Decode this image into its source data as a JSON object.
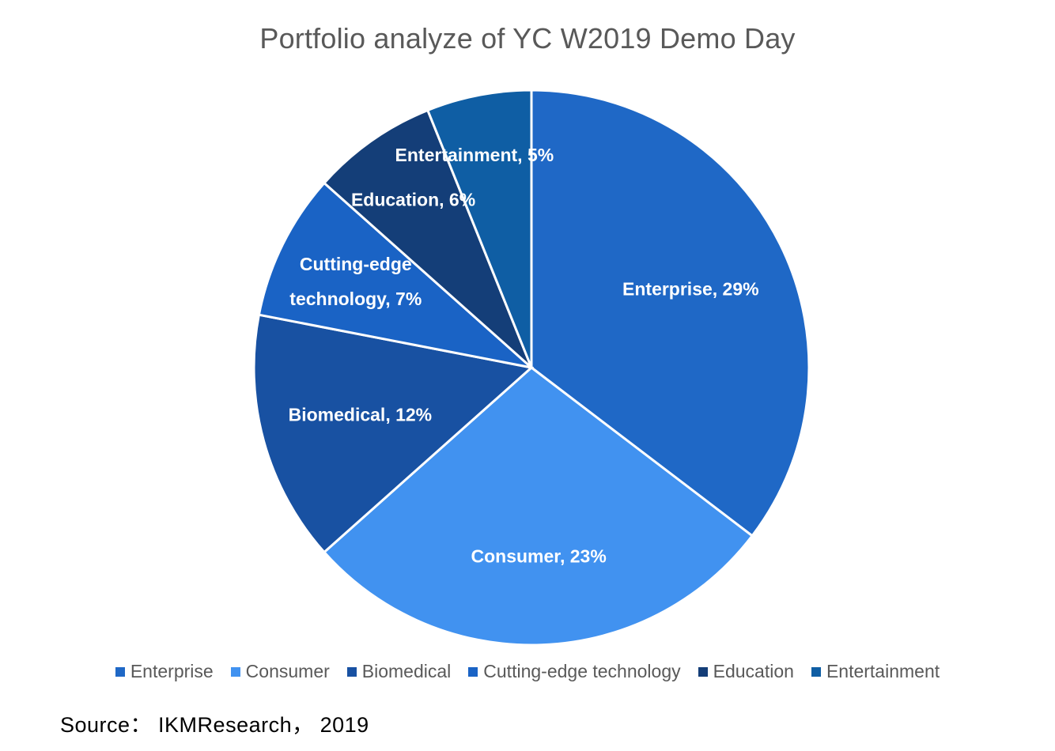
{
  "chart_data": {
    "type": "pie",
    "title": "Portfolio analyze of YC W2019 Demo Day",
    "slices": [
      {
        "name": "Enterprise",
        "value": 29,
        "label": "Enterprise, 29%",
        "color": "#1f68c6"
      },
      {
        "name": "Consumer",
        "value": 23,
        "label": "Consumer, 23%",
        "color": "#4192f0"
      },
      {
        "name": "Biomedical",
        "value": 12,
        "label": "Biomedical, 12%",
        "color": "#1851a2"
      },
      {
        "name": "Cutting-edge technology",
        "value": 7,
        "label_lines": [
          "Cutting-edge",
          "technology, 7%"
        ],
        "color": "#1a63c5"
      },
      {
        "name": "Education",
        "value": 6,
        "label": "Education, 6%",
        "color": "#143e78"
      },
      {
        "name": "Entertainment",
        "value": 5,
        "label": "Entertainment, 5%",
        "color": "#0f5ea4"
      }
    ],
    "legend": [
      "Enterprise",
      "Consumer",
      "Biomedical",
      "Cutting-edge technology",
      "Education",
      "Entertainment"
    ],
    "legend_position": "bottom",
    "source": "Source： IKMResearch， 2019"
  }
}
